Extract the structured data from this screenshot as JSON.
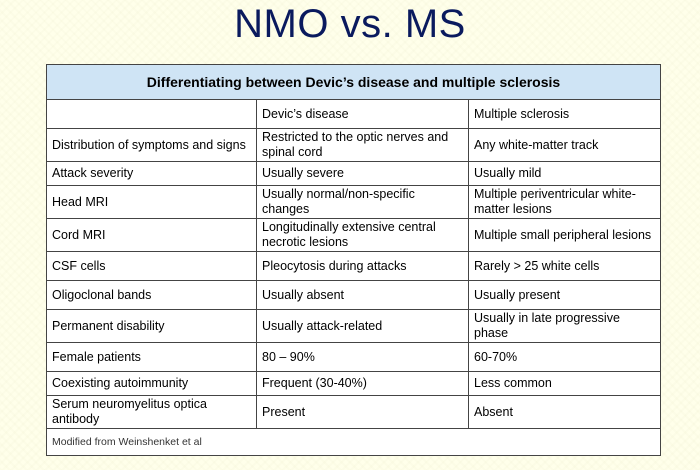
{
  "slide": {
    "title": "NMO vs. MS"
  },
  "table": {
    "caption": "Differentiating between Devic’s disease and multiple sclerosis",
    "headers": [
      "",
      "Devic’s disease",
      "Multiple sclerosis"
    ],
    "rows": [
      [
        "Distribution of symptoms and signs",
        "Restricted to the optic nerves and spinal cord",
        "Any white-matter track"
      ],
      [
        "Attack severity",
        "Usually severe",
        "Usually mild"
      ],
      [
        "Head MRI",
        "Usually normal/non-specific changes",
        "Multiple periventricular white-matter lesions"
      ],
      [
        "Cord MRI",
        "Longitudinally extensive central necrotic lesions",
        "Multiple small peripheral lesions"
      ],
      [
        "CSF cells",
        "Pleocytosis during attacks",
        "Rarely > 25 white cells"
      ],
      [
        "Oligoclonal bands",
        "Usually absent",
        "Usually present"
      ],
      [
        "Permanent disability",
        "Usually attack-related",
        "Usually in late progressive phase"
      ],
      [
        "Female patients",
        "80 – 90%",
        "60-70%"
      ],
      [
        "Coexisting autoimmunity",
        "Frequent (30-40%)",
        "Less common"
      ],
      [
        "Serum neuromyelitus optica antibody",
        "Present",
        "Absent"
      ]
    ],
    "footnote": "Modified from Weinshenket et al"
  }
}
